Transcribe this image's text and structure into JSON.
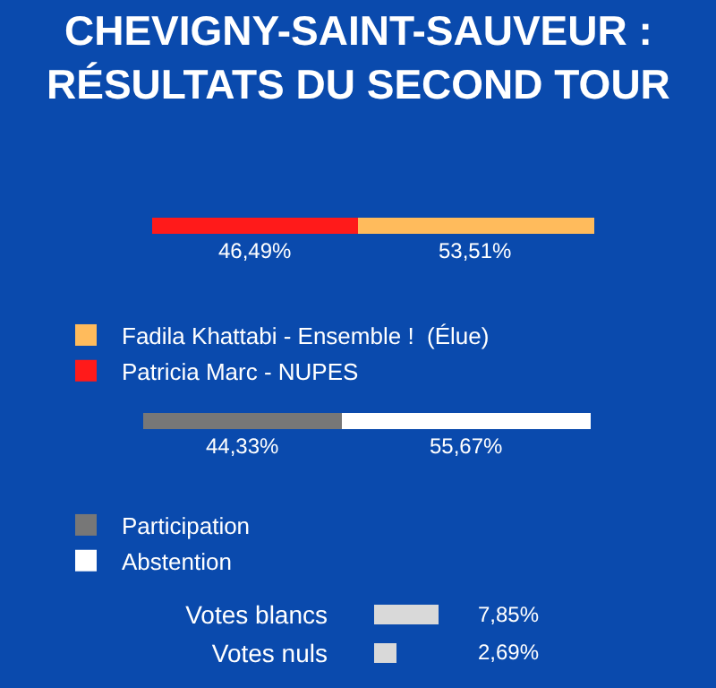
{
  "chart_data": [
    {
      "type": "bar",
      "title": "CHEVIGNY-SAINT-SAUVEUR :\nRÉSULTATS DU SECOND TOUR",
      "orientation": "horizontal",
      "stacked": true,
      "categories": [
        null
      ],
      "tick_labels": false,
      "grid": false,
      "legend": "bottom left",
      "series": [
        {
          "name": "Patricia Marc - NUPES",
          "color": "#ff1a1a",
          "values": [
            46.49
          ],
          "value_labels": [
            "46,49%"
          ]
        },
        {
          "name": "Fadila Khattabi - Ensemble !  (Élue)",
          "color": "#ffbb5c",
          "values": [
            53.51
          ],
          "value_labels": [
            "53,51%"
          ]
        }
      ]
    },
    {
      "type": "bar",
      "orientation": "horizontal",
      "stacked": true,
      "categories": [
        null
      ],
      "tick_labels": false,
      "grid": false,
      "legend": "bottom left",
      "series": [
        {
          "name": "Participation",
          "color": "#777777",
          "values": [
            44.33
          ],
          "value_labels": [
            "44,33%"
          ]
        },
        {
          "name": "Abstention",
          "color": "#ffffff",
          "values": [
            55.67
          ],
          "value_labels": [
            "55,67%"
          ]
        }
      ]
    },
    {
      "type": "bar",
      "orientation": "horizontal",
      "categories": [
        "Votes blancs",
        "Votes nuls"
      ],
      "tick_labels": "y",
      "grid": false,
      "legend": false,
      "series": [
        {
          "color": "#d9d9d9",
          "values": [
            7.85,
            2.69
          ],
          "value_labels": [
            "7,85%",
            "2,69%"
          ]
        }
      ]
    }
  ]
}
